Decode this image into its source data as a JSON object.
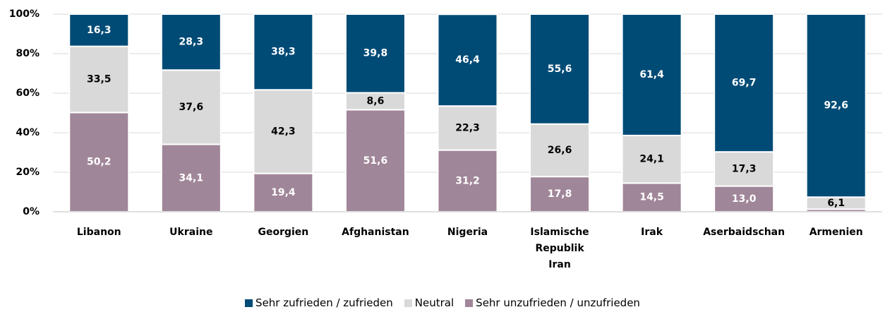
{
  "chart_data": {
    "type": "stacked_bar_100",
    "categories": [
      "Libanon",
      "Ukraine",
      "Georgien",
      "Afghanistan",
      "Nigeria",
      "Islamische Republik Iran",
      "Irak",
      "Aserbaidschan",
      "Armenien"
    ],
    "series": [
      {
        "name": "Sehr unzufrieden / unzufrieden",
        "color": "#a08699",
        "values": [
          50.2,
          34.1,
          19.4,
          51.6,
          31.2,
          17.8,
          14.5,
          13.0,
          1.3
        ],
        "value_labels": [
          "50,2",
          "34,1",
          "19,4",
          "51,6",
          "31,2",
          "17,8",
          "14,5",
          "13,0",
          null
        ]
      },
      {
        "name": "Neutral",
        "color": "#d9d9d9",
        "values": [
          33.5,
          37.6,
          42.3,
          8.6,
          22.3,
          26.6,
          24.1,
          17.3,
          6.1
        ],
        "value_labels": [
          "33,5",
          "37,6",
          "42,3",
          "8,6",
          "22,3",
          "26,6",
          "24,1",
          "17,3",
          "6,1"
        ]
      },
      {
        "name": "Sehr zufrieden / zufrieden",
        "color": "#004b76",
        "values": [
          16.3,
          28.3,
          38.3,
          39.8,
          46.4,
          55.6,
          61.4,
          69.7,
          92.6
        ],
        "value_labels": [
          "16,3",
          "28,3",
          "38,3",
          "39,8",
          "46,4",
          "55,6",
          "61,4",
          "69,7",
          "92,6"
        ]
      }
    ],
    "legend_order": [
      2,
      1,
      0
    ],
    "ylim": [
      0,
      100
    ],
    "yticks": [
      {
        "value": 0,
        "label": "0%"
      },
      {
        "value": 20,
        "label": "20%"
      },
      {
        "value": 40,
        "label": "40%"
      },
      {
        "value": 60,
        "label": "60%"
      },
      {
        "value": 80,
        "label": "80%"
      },
      {
        "value": 100,
        "label": "100%"
      }
    ],
    "grid": true,
    "legend": "bottom"
  }
}
